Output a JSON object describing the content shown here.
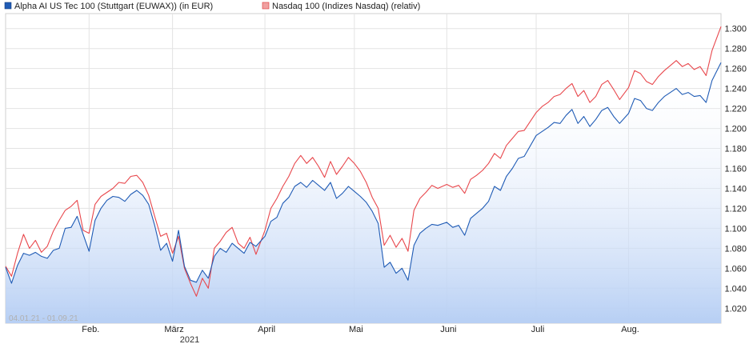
{
  "chart_data": {
    "type": "line",
    "legend_position": "top-left",
    "grid": true,
    "date_range_label": "04.01.21 - 01.09.21",
    "year_label": "2021",
    "ylim": [
      1.005,
      1.315
    ],
    "y_ticks": [
      {
        "value": 1.02,
        "label": "1.020"
      },
      {
        "value": 1.04,
        "label": "1.040"
      },
      {
        "value": 1.06,
        "label": "1.060"
      },
      {
        "value": 1.08,
        "label": "1.080"
      },
      {
        "value": 1.1,
        "label": "1.100"
      },
      {
        "value": 1.12,
        "label": "1.120"
      },
      {
        "value": 1.14,
        "label": "1.140"
      },
      {
        "value": 1.16,
        "label": "1.160"
      },
      {
        "value": 1.18,
        "label": "1.180"
      },
      {
        "value": 1.2,
        "label": "1.200"
      },
      {
        "value": 1.22,
        "label": "1.220"
      },
      {
        "value": 1.24,
        "label": "1.240"
      },
      {
        "value": 1.26,
        "label": "1.260"
      },
      {
        "value": 1.28,
        "label": "1.280"
      },
      {
        "value": 1.3,
        "label": "1.300"
      }
    ],
    "x_ticks": [
      {
        "date": "2021-02-01",
        "label": "Feb."
      },
      {
        "date": "2021-03-01",
        "label": "März"
      },
      {
        "date": "2021-04-01",
        "label": "April"
      },
      {
        "date": "2021-05-01",
        "label": "Mai"
      },
      {
        "date": "2021-06-01",
        "label": "Juni"
      },
      {
        "date": "2021-07-01",
        "label": "Juli"
      },
      {
        "date": "2021-08-01",
        "label": "Aug."
      }
    ],
    "series": [
      {
        "name": "Alpha AI US Tec 100 (Stuttgart (EUWAX)) (in EUR)",
        "color": "#1f5bb5",
        "filled": true,
        "points": [
          [
            "2021-01-04",
            1.061
          ],
          [
            "2021-01-06",
            1.045
          ],
          [
            "2021-01-08",
            1.063
          ],
          [
            "2021-01-10",
            1.075
          ],
          [
            "2021-01-12",
            1.073
          ],
          [
            "2021-01-14",
            1.076
          ],
          [
            "2021-01-16",
            1.072
          ],
          [
            "2021-01-18",
            1.07
          ],
          [
            "2021-01-20",
            1.078
          ],
          [
            "2021-01-22",
            1.08
          ],
          [
            "2021-01-24",
            1.1
          ],
          [
            "2021-01-26",
            1.101
          ],
          [
            "2021-01-28",
            1.112
          ],
          [
            "2021-01-30",
            1.094
          ],
          [
            "2021-02-01",
            1.077
          ],
          [
            "2021-02-03",
            1.108
          ],
          [
            "2021-02-05",
            1.12
          ],
          [
            "2021-02-07",
            1.128
          ],
          [
            "2021-02-09",
            1.132
          ],
          [
            "2021-02-11",
            1.131
          ],
          [
            "2021-02-13",
            1.127
          ],
          [
            "2021-02-15",
            1.134
          ],
          [
            "2021-02-17",
            1.138
          ],
          [
            "2021-02-19",
            1.133
          ],
          [
            "2021-02-21",
            1.124
          ],
          [
            "2021-02-23",
            1.103
          ],
          [
            "2021-02-25",
            1.078
          ],
          [
            "2021-02-27",
            1.085
          ],
          [
            "2021-03-01",
            1.067
          ],
          [
            "2021-03-03",
            1.098
          ],
          [
            "2021-03-05",
            1.062
          ],
          [
            "2021-03-07",
            1.048
          ],
          [
            "2021-03-09",
            1.046
          ],
          [
            "2021-03-11",
            1.058
          ],
          [
            "2021-03-13",
            1.05
          ],
          [
            "2021-03-15",
            1.072
          ],
          [
            "2021-03-17",
            1.08
          ],
          [
            "2021-03-19",
            1.076
          ],
          [
            "2021-03-21",
            1.085
          ],
          [
            "2021-03-23",
            1.08
          ],
          [
            "2021-03-25",
            1.075
          ],
          [
            "2021-03-27",
            1.086
          ],
          [
            "2021-03-29",
            1.082
          ],
          [
            "2021-04-01",
            1.092
          ],
          [
            "2021-04-03",
            1.107
          ],
          [
            "2021-04-05",
            1.111
          ],
          [
            "2021-04-07",
            1.125
          ],
          [
            "2021-04-09",
            1.131
          ],
          [
            "2021-04-11",
            1.142
          ],
          [
            "2021-04-13",
            1.146
          ],
          [
            "2021-04-15",
            1.141
          ],
          [
            "2021-04-17",
            1.148
          ],
          [
            "2021-04-19",
            1.143
          ],
          [
            "2021-04-21",
            1.138
          ],
          [
            "2021-04-23",
            1.146
          ],
          [
            "2021-04-25",
            1.13
          ],
          [
            "2021-04-27",
            1.135
          ],
          [
            "2021-04-29",
            1.142
          ],
          [
            "2021-05-01",
            1.137
          ],
          [
            "2021-05-03",
            1.132
          ],
          [
            "2021-05-05",
            1.126
          ],
          [
            "2021-05-07",
            1.117
          ],
          [
            "2021-05-09",
            1.105
          ],
          [
            "2021-05-11",
            1.061
          ],
          [
            "2021-05-13",
            1.066
          ],
          [
            "2021-05-15",
            1.055
          ],
          [
            "2021-05-17",
            1.06
          ],
          [
            "2021-05-19",
            1.048
          ],
          [
            "2021-05-21",
            1.083
          ],
          [
            "2021-05-23",
            1.095
          ],
          [
            "2021-05-25",
            1.1
          ],
          [
            "2021-05-27",
            1.104
          ],
          [
            "2021-05-29",
            1.103
          ],
          [
            "2021-06-01",
            1.106
          ],
          [
            "2021-06-03",
            1.101
          ],
          [
            "2021-06-05",
            1.103
          ],
          [
            "2021-06-07",
            1.093
          ],
          [
            "2021-06-09",
            1.11
          ],
          [
            "2021-06-11",
            1.115
          ],
          [
            "2021-06-13",
            1.12
          ],
          [
            "2021-06-15",
            1.127
          ],
          [
            "2021-06-17",
            1.142
          ],
          [
            "2021-06-19",
            1.138
          ],
          [
            "2021-06-21",
            1.152
          ],
          [
            "2021-06-23",
            1.16
          ],
          [
            "2021-06-25",
            1.17
          ],
          [
            "2021-06-27",
            1.172
          ],
          [
            "2021-07-01",
            1.193
          ],
          [
            "2021-07-03",
            1.197
          ],
          [
            "2021-07-05",
            1.201
          ],
          [
            "2021-07-07",
            1.206
          ],
          [
            "2021-07-09",
            1.205
          ],
          [
            "2021-07-11",
            1.213
          ],
          [
            "2021-07-13",
            1.219
          ],
          [
            "2021-07-15",
            1.205
          ],
          [
            "2021-07-17",
            1.212
          ],
          [
            "2021-07-19",
            1.202
          ],
          [
            "2021-07-21",
            1.209
          ],
          [
            "2021-07-23",
            1.218
          ],
          [
            "2021-07-25",
            1.221
          ],
          [
            "2021-07-27",
            1.212
          ],
          [
            "2021-07-29",
            1.205
          ],
          [
            "2021-08-01",
            1.215
          ],
          [
            "2021-08-03",
            1.23
          ],
          [
            "2021-08-05",
            1.228
          ],
          [
            "2021-08-07",
            1.22
          ],
          [
            "2021-08-09",
            1.218
          ],
          [
            "2021-08-11",
            1.226
          ],
          [
            "2021-08-13",
            1.232
          ],
          [
            "2021-08-15",
            1.236
          ],
          [
            "2021-08-17",
            1.24
          ],
          [
            "2021-08-19",
            1.234
          ],
          [
            "2021-08-21",
            1.236
          ],
          [
            "2021-08-23",
            1.232
          ],
          [
            "2021-08-25",
            1.233
          ],
          [
            "2021-08-27",
            1.226
          ],
          [
            "2021-08-29",
            1.248
          ],
          [
            "2021-09-01",
            1.266
          ]
        ]
      },
      {
        "name": "Nasdaq 100 (Indizes Nasdaq) (relativ)",
        "color": "#e8474c",
        "filled": false,
        "points": [
          [
            "2021-01-04",
            1.062
          ],
          [
            "2021-01-06",
            1.052
          ],
          [
            "2021-01-08",
            1.075
          ],
          [
            "2021-01-10",
            1.094
          ],
          [
            "2021-01-12",
            1.08
          ],
          [
            "2021-01-14",
            1.088
          ],
          [
            "2021-01-16",
            1.076
          ],
          [
            "2021-01-18",
            1.082
          ],
          [
            "2021-01-20",
            1.097
          ],
          [
            "2021-01-22",
            1.108
          ],
          [
            "2021-01-24",
            1.118
          ],
          [
            "2021-01-26",
            1.122
          ],
          [
            "2021-01-28",
            1.128
          ],
          [
            "2021-01-30",
            1.098
          ],
          [
            "2021-02-01",
            1.095
          ],
          [
            "2021-02-03",
            1.124
          ],
          [
            "2021-02-05",
            1.132
          ],
          [
            "2021-02-07",
            1.136
          ],
          [
            "2021-02-09",
            1.14
          ],
          [
            "2021-02-11",
            1.146
          ],
          [
            "2021-02-13",
            1.145
          ],
          [
            "2021-02-15",
            1.152
          ],
          [
            "2021-02-17",
            1.153
          ],
          [
            "2021-02-19",
            1.146
          ],
          [
            "2021-02-21",
            1.133
          ],
          [
            "2021-02-23",
            1.112
          ],
          [
            "2021-02-25",
            1.092
          ],
          [
            "2021-02-27",
            1.095
          ],
          [
            "2021-03-01",
            1.075
          ],
          [
            "2021-03-03",
            1.092
          ],
          [
            "2021-03-05",
            1.06
          ],
          [
            "2021-03-07",
            1.045
          ],
          [
            "2021-03-09",
            1.032
          ],
          [
            "2021-03-11",
            1.05
          ],
          [
            "2021-03-13",
            1.04
          ],
          [
            "2021-03-15",
            1.08
          ],
          [
            "2021-03-17",
            1.087
          ],
          [
            "2021-03-19",
            1.096
          ],
          [
            "2021-03-21",
            1.101
          ],
          [
            "2021-03-23",
            1.085
          ],
          [
            "2021-03-25",
            1.08
          ],
          [
            "2021-03-27",
            1.091
          ],
          [
            "2021-03-29",
            1.074
          ],
          [
            "2021-04-01",
            1.098
          ],
          [
            "2021-04-03",
            1.12
          ],
          [
            "2021-04-05",
            1.13
          ],
          [
            "2021-04-07",
            1.142
          ],
          [
            "2021-04-09",
            1.152
          ],
          [
            "2021-04-11",
            1.165
          ],
          [
            "2021-04-13",
            1.173
          ],
          [
            "2021-04-15",
            1.165
          ],
          [
            "2021-04-17",
            1.171
          ],
          [
            "2021-04-19",
            1.162
          ],
          [
            "2021-04-21",
            1.151
          ],
          [
            "2021-04-23",
            1.167
          ],
          [
            "2021-04-25",
            1.154
          ],
          [
            "2021-04-27",
            1.162
          ],
          [
            "2021-04-29",
            1.171
          ],
          [
            "2021-05-01",
            1.165
          ],
          [
            "2021-05-03",
            1.157
          ],
          [
            "2021-05-05",
            1.146
          ],
          [
            "2021-05-07",
            1.131
          ],
          [
            "2021-05-09",
            1.12
          ],
          [
            "2021-05-11",
            1.083
          ],
          [
            "2021-05-13",
            1.093
          ],
          [
            "2021-05-15",
            1.081
          ],
          [
            "2021-05-17",
            1.09
          ],
          [
            "2021-05-19",
            1.077
          ],
          [
            "2021-05-21",
            1.118
          ],
          [
            "2021-05-23",
            1.13
          ],
          [
            "2021-05-25",
            1.136
          ],
          [
            "2021-05-27",
            1.143
          ],
          [
            "2021-05-29",
            1.14
          ],
          [
            "2021-06-01",
            1.144
          ],
          [
            "2021-06-03",
            1.141
          ],
          [
            "2021-06-05",
            1.143
          ],
          [
            "2021-06-07",
            1.135
          ],
          [
            "2021-06-09",
            1.149
          ],
          [
            "2021-06-11",
            1.153
          ],
          [
            "2021-06-13",
            1.158
          ],
          [
            "2021-06-15",
            1.165
          ],
          [
            "2021-06-17",
            1.175
          ],
          [
            "2021-06-19",
            1.17
          ],
          [
            "2021-06-21",
            1.183
          ],
          [
            "2021-06-23",
            1.19
          ],
          [
            "2021-06-25",
            1.197
          ],
          [
            "2021-06-27",
            1.198
          ],
          [
            "2021-07-01",
            1.216
          ],
          [
            "2021-07-03",
            1.222
          ],
          [
            "2021-07-05",
            1.226
          ],
          [
            "2021-07-07",
            1.232
          ],
          [
            "2021-07-09",
            1.234
          ],
          [
            "2021-07-11",
            1.24
          ],
          [
            "2021-07-13",
            1.245
          ],
          [
            "2021-07-15",
            1.232
          ],
          [
            "2021-07-17",
            1.238
          ],
          [
            "2021-07-19",
            1.226
          ],
          [
            "2021-07-21",
            1.232
          ],
          [
            "2021-07-23",
            1.244
          ],
          [
            "2021-07-25",
            1.248
          ],
          [
            "2021-07-27",
            1.239
          ],
          [
            "2021-07-29",
            1.229
          ],
          [
            "2021-08-01",
            1.241
          ],
          [
            "2021-08-03",
            1.258
          ],
          [
            "2021-08-05",
            1.255
          ],
          [
            "2021-08-07",
            1.247
          ],
          [
            "2021-08-09",
            1.244
          ],
          [
            "2021-08-11",
            1.252
          ],
          [
            "2021-08-13",
            1.258
          ],
          [
            "2021-08-15",
            1.263
          ],
          [
            "2021-08-17",
            1.268
          ],
          [
            "2021-08-19",
            1.262
          ],
          [
            "2021-08-21",
            1.265
          ],
          [
            "2021-08-23",
            1.259
          ],
          [
            "2021-08-25",
            1.262
          ],
          [
            "2021-08-27",
            1.253
          ],
          [
            "2021-08-29",
            1.278
          ],
          [
            "2021-09-01",
            1.302
          ]
        ]
      }
    ]
  }
}
